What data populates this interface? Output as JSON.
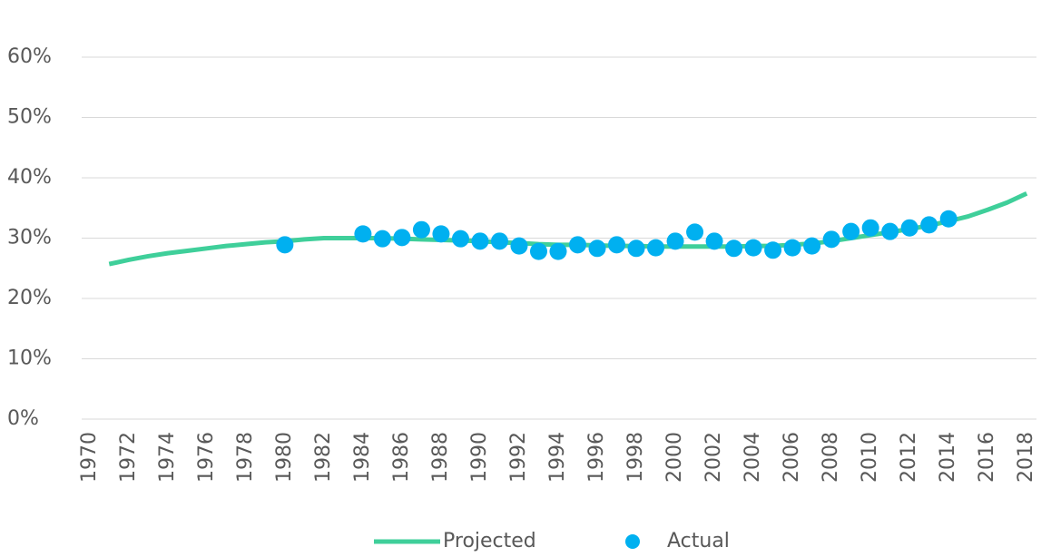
{
  "chart_data": {
    "type": "line",
    "xlim": [
      1969.5,
      2018.5
    ],
    "xticks": [
      1970,
      1972,
      1974,
      1976,
      1978,
      1980,
      1982,
      1984,
      1986,
      1988,
      1990,
      1992,
      1994,
      1996,
      1998,
      2000,
      2002,
      2004,
      2006,
      2008,
      2010,
      2012,
      2014,
      2016,
      2018
    ],
    "ylim": [
      0,
      60
    ],
    "yticks": [
      {
        "value": 0,
        "label": "0%"
      },
      {
        "value": 10,
        "label": "10%"
      },
      {
        "value": 20,
        "label": "20%"
      },
      {
        "value": 30,
        "label": "30%"
      },
      {
        "value": 40,
        "label": "40%"
      },
      {
        "value": 50,
        "label": "50%"
      },
      {
        "value": 60,
        "label": "60%"
      }
    ],
    "grid": true,
    "legend": "bottom",
    "series": [
      {
        "name": "Projected",
        "type": "line",
        "color": "#3fcf9a",
        "x": [
          1971,
          1972,
          1973,
          1974,
          1975,
          1976,
          1977,
          1978,
          1979,
          1980,
          1981,
          1982,
          1983,
          1984,
          1985,
          1986,
          1987,
          1988,
          1989,
          1990,
          1991,
          1992,
          1993,
          1994,
          1995,
          1996,
          1997,
          1998,
          1999,
          2000,
          2001,
          2002,
          2003,
          2004,
          2005,
          2006,
          2007,
          2008,
          2009,
          2010,
          2011,
          2012,
          2013,
          2014,
          2015,
          2016,
          2017,
          2018
        ],
        "values": [
          25.7,
          26.4,
          27.0,
          27.5,
          27.9,
          28.3,
          28.7,
          29.0,
          29.3,
          29.5,
          29.8,
          30.0,
          30.0,
          30.0,
          30.0,
          29.9,
          29.8,
          29.7,
          29.6,
          29.5,
          29.3,
          29.2,
          29.0,
          28.9,
          28.9,
          28.8,
          28.7,
          28.7,
          28.6,
          28.6,
          28.6,
          28.6,
          28.6,
          28.7,
          28.7,
          28.9,
          29.1,
          29.5,
          30.0,
          30.5,
          31.0,
          31.5,
          32.1,
          32.8,
          33.6,
          34.7,
          35.9,
          37.4
        ]
      },
      {
        "name": "Actual",
        "type": "scatter",
        "color": "#00b0f0",
        "x": [
          1980,
          1984,
          1985,
          1986,
          1987,
          1988,
          1989,
          1990,
          1991,
          1992,
          1993,
          1994,
          1995,
          1996,
          1997,
          1998,
          1999,
          2000,
          2001,
          2002,
          2003,
          2004,
          2005,
          2006,
          2007,
          2008,
          2009,
          2010,
          2011,
          2012,
          2013,
          2014
        ],
        "values": [
          28.9,
          30.7,
          29.9,
          30.1,
          31.4,
          30.7,
          29.9,
          29.5,
          29.5,
          28.7,
          27.8,
          27.8,
          28.9,
          28.3,
          28.9,
          28.3,
          28.4,
          29.5,
          31.0,
          29.5,
          28.3,
          28.4,
          28.0,
          28.4,
          28.7,
          29.8,
          31.1,
          31.7,
          31.1,
          31.7,
          32.2,
          33.2
        ]
      }
    ]
  }
}
